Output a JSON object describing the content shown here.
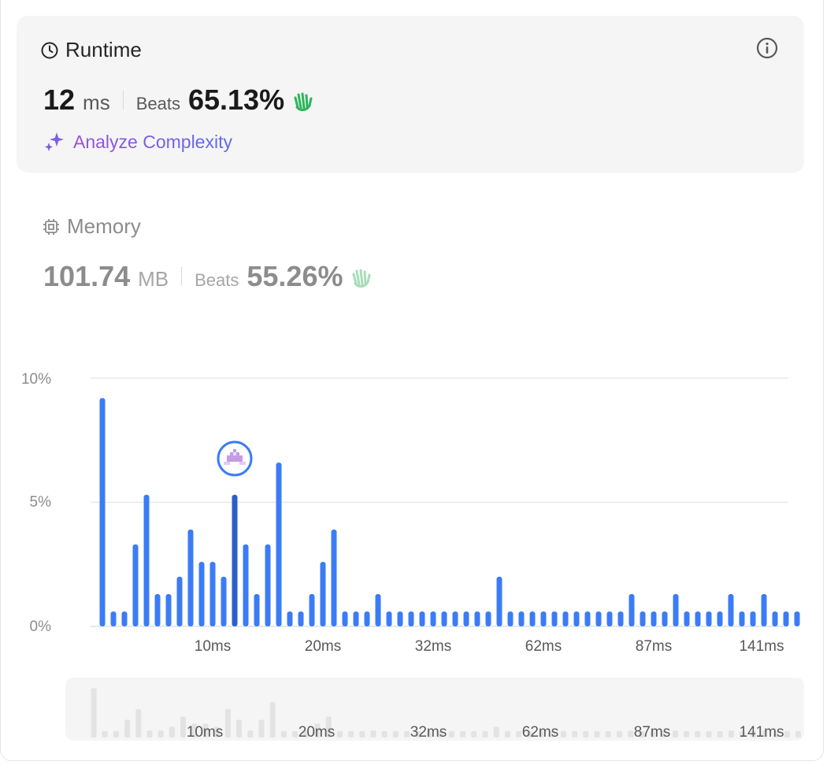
{
  "runtime": {
    "title": "Runtime",
    "value": "12",
    "unit": "ms",
    "beats_label": "Beats",
    "beats_value": "65.13%",
    "analyze_label": "Analyze Complexity"
  },
  "memory": {
    "title": "Memory",
    "value": "101.74",
    "unit": "MB",
    "beats_label": "Beats",
    "beats_value": "55.26%"
  },
  "colors": {
    "bar": "#3b7cf6",
    "bar_selected": "#2c5fc9",
    "clap_active": "#2db55d",
    "clap_muted": "#a8dcb8",
    "analyze_gradient": [
      "#9b4fd9",
      "#5c6cf0"
    ]
  },
  "chart_data": {
    "type": "bar",
    "y_ticks": [
      "10%",
      "5%",
      "0%"
    ],
    "ylim": [
      0,
      10
    ],
    "x_tick_labels": [
      "10ms",
      "20ms",
      "32ms",
      "62ms",
      "87ms",
      "141ms"
    ],
    "values": [
      9.2,
      0.6,
      0.6,
      3.3,
      5.3,
      1.3,
      1.3,
      2.0,
      3.9,
      2.6,
      2.6,
      2.0,
      5.3,
      3.3,
      1.3,
      3.3,
      6.6,
      0.6,
      0.6,
      1.3,
      2.6,
      3.9,
      0.6,
      0.6,
      0.6,
      1.3,
      0.6,
      0.6,
      0.6,
      0.6,
      0.6,
      0.6,
      0.6,
      0.6,
      0.6,
      0.6,
      2.0,
      0.6,
      0.6,
      0.6,
      0.6,
      0.6,
      0.6,
      0.6,
      0.6,
      0.6,
      0.6,
      0.6,
      1.3,
      0.6,
      0.6,
      0.6,
      1.3,
      0.6,
      0.6,
      0.6,
      0.6,
      1.3,
      0.6,
      0.6,
      1.3,
      0.6,
      0.6,
      0.6
    ],
    "selected_index": 12,
    "marker": "avatar at the 12 ms bar"
  },
  "brush": {
    "x_tick_labels": [
      "10ms",
      "20ms",
      "32ms",
      "62ms",
      "87ms",
      "141ms"
    ]
  }
}
